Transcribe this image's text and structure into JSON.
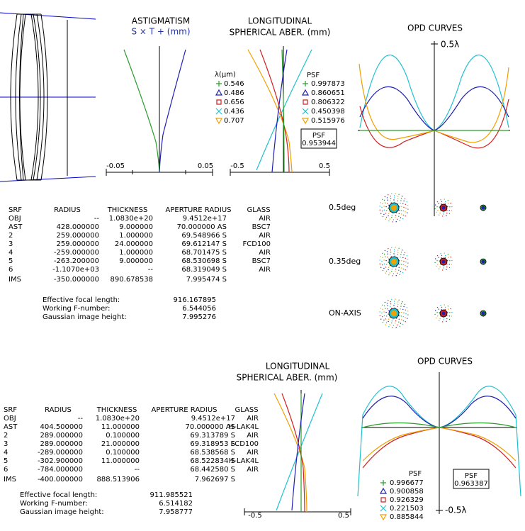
{
  "astigmatism": {
    "title": "ASTIGMATISM",
    "subtitle": "S × T + (mm)",
    "axis": [
      "-0.05",
      "0.05"
    ]
  },
  "top": {
    "spherical": {
      "title": [
        "LONGITUDINAL",
        "SPHERICAL ABER. (mm)"
      ],
      "axis": [
        "-0.5",
        "0.5"
      ],
      "wavelength_header": "λ(μm)",
      "wavelengths": [
        "0.546",
        "0.486",
        "0.656",
        "0.436",
        "0.707"
      ],
      "psf_header": "PSF",
      "psf": [
        "0.997873",
        "0.860651",
        "0.806322",
        "0.450398",
        "0.515976"
      ],
      "psf_total_header": "PSF",
      "psf_total": "0.953944"
    },
    "opd": {
      "title": "OPD CURVES",
      "scale": "0.5λ"
    },
    "table": {
      "header": [
        "SRF",
        "RADIUS",
        "THICKNESS",
        "APERTURE RADIUS",
        "GLASS"
      ],
      "rows": [
        [
          "OBJ",
          "--",
          "1.0830e+20",
          "9.4512e+17",
          "AIR"
        ],
        [
          "AST",
          "428.000000",
          "9.000000",
          "70.000000 AS",
          "BSC7"
        ],
        [
          "2",
          "259.000000",
          "1.000000",
          "69.548966 S",
          "AIR"
        ],
        [
          "3",
          "259.000000",
          "24.000000",
          "69.612147 S",
          "FCD100"
        ],
        [
          "4",
          "-259.000000",
          "1.000000",
          "68.701475 S",
          "AIR"
        ],
        [
          "5",
          "-263.200000",
          "9.000000",
          "68.530698 S",
          "BSC7"
        ],
        [
          "6",
          "-1.1070e+03",
          "--",
          "68.319049 S",
          "AIR"
        ],
        [
          "IMS",
          "-350.000000",
          "890.678538",
          "7.995474 S"
        ]
      ]
    },
    "summary": [
      [
        "Effective focal length:",
        "916.167895"
      ],
      [
        "Working F-number:",
        "6.544056"
      ],
      [
        "Gaussian image height:",
        "7.995276"
      ]
    ]
  },
  "spots": [
    "0.5deg",
    "0.35deg",
    "ON-AXIS"
  ],
  "bottom": {
    "spherical": {
      "title": [
        "LONGITUDINAL",
        "SPHERICAL ABER. (mm)"
      ],
      "axis": [
        "-0.5",
        "0.5"
      ]
    },
    "opd": {
      "title": "OPD CURVES",
      "scale": "-0.5λ",
      "psf_header": "PSF",
      "psf": [
        "0.996677",
        "0.900858",
        "0.926329",
        "0.221503",
        "0.885844"
      ],
      "psf_total_header": "PSF",
      "psf_total": "0.963387"
    },
    "table": {
      "header": [
        "SRF",
        "RADIUS",
        "THICKNESS",
        "APERTURE RADIUS",
        "GLASS"
      ],
      "rows": [
        [
          "OBJ",
          "--",
          "1.0830e+20",
          "9.4512e+17",
          "AIR"
        ],
        [
          "AST",
          "404.500000",
          "11.000000",
          "70.000000 AS",
          "H-LAK4L"
        ],
        [
          "2",
          "289.000000",
          "0.100000",
          "69.313789 S",
          "AIR"
        ],
        [
          "3",
          "289.000000",
          "21.000000",
          "69.318953 S",
          "FCD100"
        ],
        [
          "4",
          "-289.000000",
          "0.100000",
          "68.538568 S",
          "AIR"
        ],
        [
          "5",
          "-302.900000",
          "11.000000",
          "68.522834 S",
          "H-LAK4L"
        ],
        [
          "6",
          "-784.000000",
          "--",
          "68.442580 S",
          "AIR"
        ],
        [
          "IMS",
          "-400.000000",
          "888.513906",
          "7.962697 S"
        ]
      ]
    },
    "summary": [
      [
        "Effective focal length:",
        "911.985521"
      ],
      [
        "Working F-number:",
        "6.514182"
      ],
      [
        "Gaussian image height:",
        "7.958777"
      ]
    ]
  }
}
